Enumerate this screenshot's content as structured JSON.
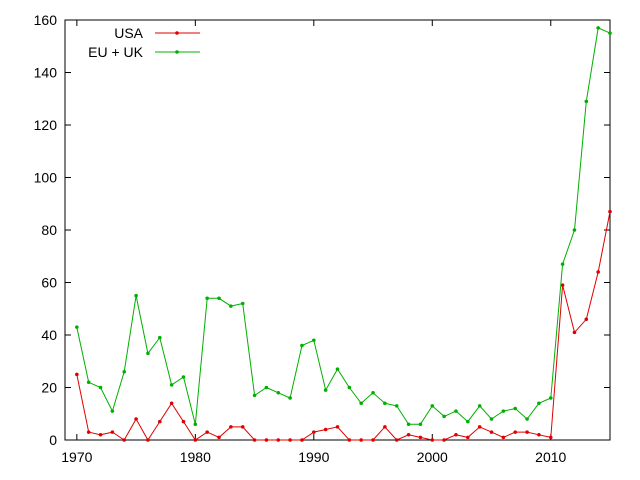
{
  "chart_data": {
    "type": "line",
    "title": "",
    "xlabel": "",
    "ylabel": "",
    "xlim": [
      1969,
      2015
    ],
    "ylim": [
      0,
      160
    ],
    "xticks": [
      1970,
      1980,
      1990,
      2000,
      2010
    ],
    "yticks": [
      0,
      20,
      40,
      60,
      80,
      100,
      120,
      140,
      160
    ],
    "grid": false,
    "legend_position": "top-left",
    "x": [
      1970,
      1971,
      1972,
      1973,
      1974,
      1975,
      1976,
      1977,
      1978,
      1979,
      1980,
      1981,
      1982,
      1983,
      1984,
      1985,
      1986,
      1987,
      1988,
      1989,
      1990,
      1991,
      1992,
      1993,
      1994,
      1995,
      1996,
      1997,
      1998,
      1999,
      2000,
      2001,
      2002,
      2003,
      2004,
      2005,
      2006,
      2007,
      2008,
      2009,
      2010,
      2011,
      2012,
      2013,
      2014,
      2015
    ],
    "series": [
      {
        "name": "USA",
        "color": "#e00000",
        "values": [
          25,
          3,
          2,
          3,
          0,
          8,
          0,
          7,
          14,
          7,
          0,
          3,
          1,
          5,
          5,
          0,
          0,
          0,
          0,
          0,
          3,
          4,
          5,
          0,
          0,
          0,
          5,
          0,
          2,
          1,
          0,
          0,
          2,
          1,
          5,
          3,
          1,
          3,
          3,
          2,
          1,
          59,
          41,
          46,
          64,
          87
        ]
      },
      {
        "name": "EU + UK",
        "color": "#00b000",
        "values": [
          43,
          22,
          20,
          11,
          26,
          55,
          33,
          39,
          21,
          24,
          6,
          54,
          54,
          51,
          52,
          17,
          20,
          18,
          16,
          36,
          38,
          19,
          27,
          20,
          14,
          18,
          14,
          13,
          6,
          6,
          13,
          9,
          11,
          7,
          13,
          8,
          11,
          12,
          8,
          14,
          16,
          67,
          80,
          129,
          157,
          155
        ]
      }
    ]
  }
}
